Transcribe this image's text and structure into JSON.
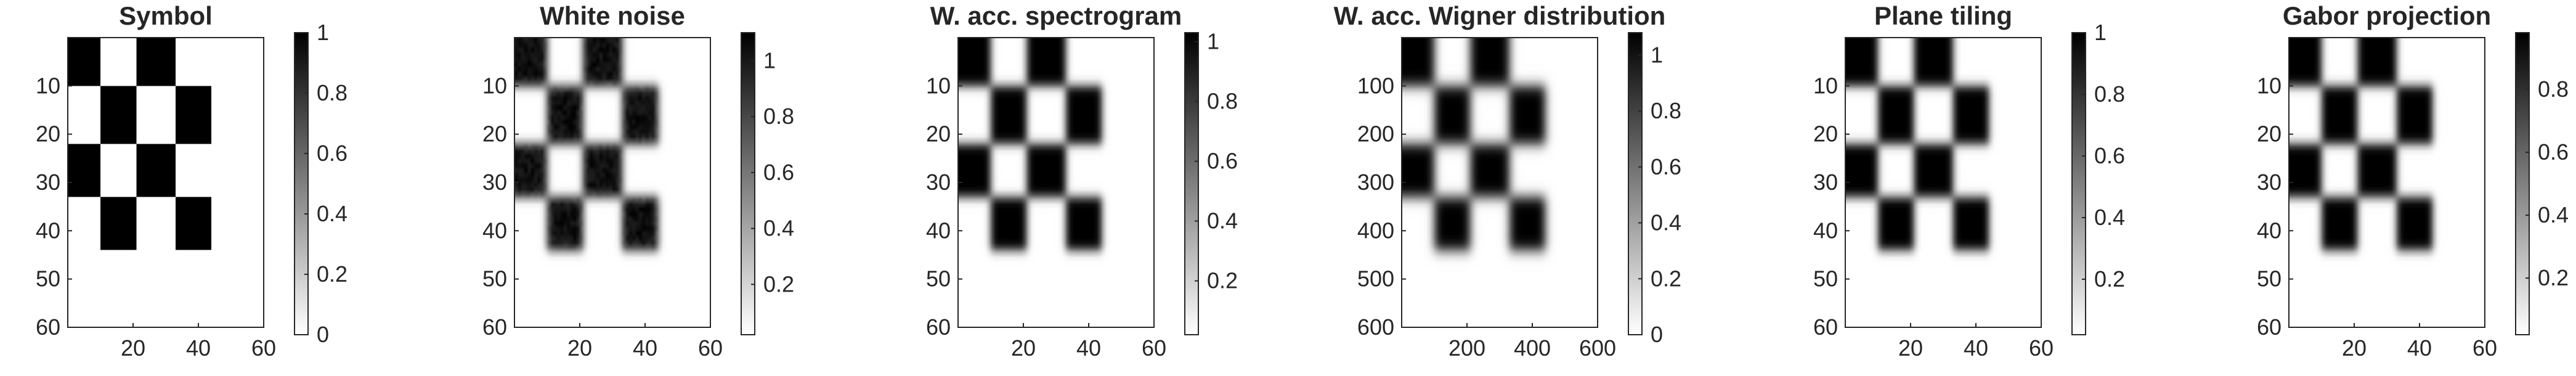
{
  "figure": {
    "background": "#ffffff",
    "axis_color": "#262626",
    "colormap": "gray-reversed (white = low, black = high)"
  },
  "chart_data": [
    {
      "type": "heatmap",
      "title": "Symbol",
      "x_ticks": [
        20,
        40,
        60
      ],
      "y_ticks": [
        10,
        20,
        30,
        40,
        50,
        60
      ],
      "xlim": [
        0,
        60
      ],
      "ylim": [
        60,
        0
      ],
      "y_reversed": true,
      "grid": false,
      "colorbar": {
        "ticks": [
          "0",
          "0.2",
          "0.4",
          "0.6",
          "0.8",
          "1"
        ],
        "tick_values": [
          0,
          0.2,
          0.4,
          0.6,
          0.8,
          1
        ],
        "range": [
          0,
          1
        ]
      },
      "blur": 0,
      "noise": 0,
      "value_range": [
        0,
        1
      ]
    },
    {
      "type": "heatmap",
      "title": "White noise",
      "x_ticks": [
        20,
        40,
        60
      ],
      "y_ticks": [
        10,
        20,
        30,
        40,
        50,
        60
      ],
      "xlim": [
        0,
        60
      ],
      "ylim": [
        60,
        0
      ],
      "y_reversed": true,
      "grid": false,
      "colorbar": {
        "ticks": [
          "0.2",
          "0.4",
          "0.6",
          "0.8",
          "1"
        ],
        "tick_values": [
          0.2,
          0.4,
          0.6,
          0.8,
          1
        ],
        "range": [
          0.02,
          1.1
        ]
      },
      "blur": 1,
      "noise": 0.12,
      "value_range": [
        0,
        1
      ]
    },
    {
      "type": "heatmap",
      "title": "W. acc. spectrogram",
      "x_ticks": [
        20,
        40,
        60
      ],
      "y_ticks": [
        10,
        20,
        30,
        40,
        50,
        60
      ],
      "xlim": [
        0,
        60
      ],
      "ylim": [
        60,
        0
      ],
      "y_reversed": true,
      "grid": false,
      "colorbar": {
        "ticks": [
          "0.2",
          "0.4",
          "0.6",
          "0.8",
          "1"
        ],
        "tick_values": [
          0.2,
          0.4,
          0.6,
          0.8,
          1
        ],
        "range": [
          0.02,
          1.03
        ]
      },
      "blur": 1,
      "noise": 0,
      "value_range": [
        0,
        1
      ]
    },
    {
      "type": "heatmap",
      "title": "W. acc. Wigner distribution",
      "x_ticks": [
        200,
        400,
        600
      ],
      "y_ticks": [
        100,
        200,
        300,
        400,
        500,
        600
      ],
      "xlim": [
        0,
        600
      ],
      "ylim": [
        600,
        0
      ],
      "y_reversed": true,
      "grid": false,
      "colorbar": {
        "ticks": [
          "0",
          "0.2",
          "0.4",
          "0.6",
          "0.8",
          "1"
        ],
        "tick_values": [
          0,
          0.2,
          0.4,
          0.6,
          0.8,
          1
        ],
        "range": [
          0,
          1.08
        ]
      },
      "blur": 1.3,
      "noise": 0,
      "value_range": [
        0,
        1
      ]
    },
    {
      "type": "heatmap",
      "title": "Plane tiling",
      "x_ticks": [
        20,
        40,
        60
      ],
      "y_ticks": [
        10,
        20,
        30,
        40,
        50,
        60
      ],
      "xlim": [
        0,
        60
      ],
      "ylim": [
        60,
        0
      ],
      "y_reversed": true,
      "grid": false,
      "colorbar": {
        "ticks": [
          "0.2",
          "0.4",
          "0.6",
          "0.8",
          "1"
        ],
        "tick_values": [
          0.2,
          0.4,
          0.6,
          0.8,
          1
        ],
        "range": [
          0.02,
          1
        ]
      },
      "blur": 1,
      "noise": 0,
      "value_range": [
        0,
        1
      ]
    },
    {
      "type": "heatmap",
      "title": "Gabor projection",
      "x_ticks": [
        20,
        40,
        60
      ],
      "y_ticks": [
        10,
        20,
        30,
        40,
        50,
        60
      ],
      "xlim": [
        0,
        60
      ],
      "ylim": [
        60,
        0
      ],
      "y_reversed": true,
      "grid": false,
      "colorbar": {
        "ticks": [
          "0.2",
          "0.4",
          "0.6",
          "0.8"
        ],
        "tick_values": [
          0.2,
          0.4,
          0.6,
          0.8
        ],
        "range": [
          0.02,
          0.98
        ]
      },
      "blur": 1,
      "noise": 0,
      "value_range": [
        0,
        1
      ]
    }
  ],
  "symbol": {
    "rows": 60,
    "cols": 60,
    "blocks": [
      {
        "x": [
          1,
          10
        ],
        "y": [
          1,
          10
        ]
      },
      {
        "x": [
          22,
          33
        ],
        "y": [
          1,
          10
        ]
      },
      {
        "x": [
          11,
          21
        ],
        "y": [
          11,
          22
        ]
      },
      {
        "x": [
          34,
          44
        ],
        "y": [
          11,
          22
        ]
      },
      {
        "x": [
          1,
          10
        ],
        "y": [
          23,
          33
        ]
      },
      {
        "x": [
          22,
          33
        ],
        "y": [
          23,
          33
        ]
      },
      {
        "x": [
          11,
          21
        ],
        "y": [
          34,
          44
        ]
      },
      {
        "x": [
          34,
          44
        ],
        "y": [
          34,
          44
        ]
      }
    ]
  }
}
